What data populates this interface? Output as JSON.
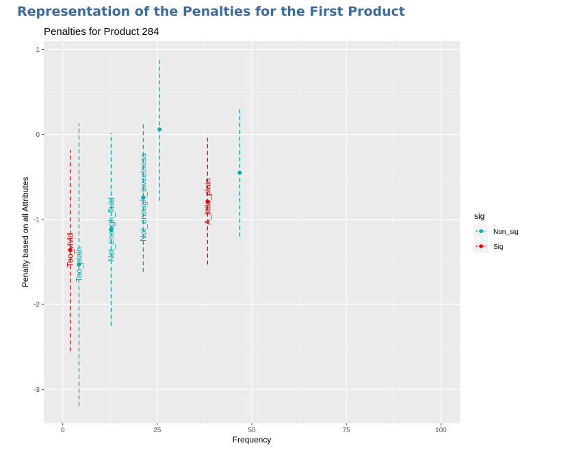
{
  "page": {
    "heading": "Representation of the Penalties for the First Product"
  },
  "chart_data": {
    "type": "scatter",
    "title": "Penalties for Product 284",
    "xlabel": "Frequency",
    "ylabel": "Penalty based on all Attributes",
    "xlim": [
      -5,
      105
    ],
    "ylim": [
      -3.4,
      1.1
    ],
    "x_ticks": [
      0,
      25,
      50,
      75,
      100
    ],
    "x_tick_labels": [
      "0",
      "25",
      "50",
      "75",
      "100"
    ],
    "y_ticks": [
      1,
      0,
      -1,
      -2,
      -3
    ],
    "y_tick_labels": [
      "1",
      "0",
      "-1",
      "-2",
      "-3"
    ],
    "grid": true,
    "legend": {
      "title": "sig",
      "position": "right",
      "entries": [
        {
          "label": "Non_sig",
          "color": "#00adad"
        },
        {
          "label": "Sig",
          "color": "#f00000"
        }
      ]
    },
    "points": [
      {
        "x": 2,
        "y": -1.36,
        "ymin": -2.55,
        "ymax": -0.18,
        "group": "Sig",
        "label": "Too_vivid"
      },
      {
        "x": 4.3,
        "y": -1.53,
        "ymin": -3.2,
        "ymax": 0.13,
        "group": "Non_sig",
        "label": "Too_plain"
      },
      {
        "x": 12.8,
        "y": -1.12,
        "ymin": -2.25,
        "ymax": 0.02,
        "group": "Non_sig",
        "label": "Not_enough_fluid"
      },
      {
        "x": 21.3,
        "y": -0.74,
        "ymin": -1.62,
        "ymax": 0.14,
        "group": "Non_sig",
        "label": "Not_enough_sweetness"
      },
      {
        "x": 25.6,
        "y": 0.06,
        "ymin": -0.78,
        "ymax": 0.91,
        "group": "Non_sig",
        "label": ""
      },
      {
        "x": 38.3,
        "y": -0.79,
        "ymin": -1.53,
        "ymax": -0.04,
        "group": "Sig",
        "label": "A_little_plain"
      },
      {
        "x": 46.8,
        "y": -0.45,
        "ymin": -1.2,
        "ymax": 0.31,
        "group": "Non_sig",
        "label": ""
      }
    ]
  }
}
